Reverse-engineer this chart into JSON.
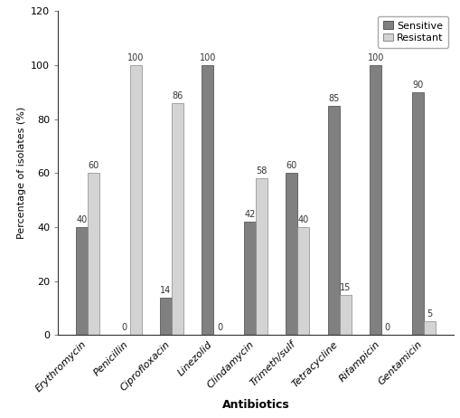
{
  "categories": [
    "Erythromycin",
    "Penicillin",
    "Ciprofloxacin",
    "Linezolid",
    "Clindamycin",
    "Trimeth/sulf",
    "Tetracycline",
    "Rifampicin",
    "Gentamicin"
  ],
  "sensitive": [
    40,
    0,
    14,
    100,
    42,
    60,
    85,
    100,
    90
  ],
  "resistant": [
    60,
    100,
    86,
    0,
    58,
    40,
    15,
    0,
    5
  ],
  "sensitive_color": "#808080",
  "resistant_color": "#d3d3d3",
  "xlabel": "Antibiotics",
  "ylabel": "Percentage of isolates (%)",
  "ylim": [
    0,
    120
  ],
  "yticks": [
    0,
    20,
    40,
    60,
    80,
    100,
    120
  ],
  "bar_width": 0.28,
  "legend_labels": [
    "Sensitive",
    "Resistant"
  ],
  "label_fontsize": 9,
  "tick_fontsize": 8,
  "bar_label_fontsize": 7,
  "legend_fontsize": 8
}
